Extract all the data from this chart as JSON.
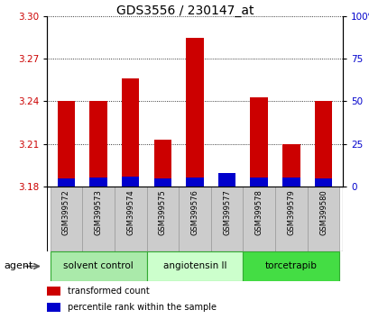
{
  "title": "GDS3556 / 230147_at",
  "samples": [
    "GSM399572",
    "GSM399573",
    "GSM399574",
    "GSM399575",
    "GSM399576",
    "GSM399577",
    "GSM399578",
    "GSM399579",
    "GSM399580"
  ],
  "red_values": [
    3.24,
    3.24,
    3.256,
    3.213,
    3.285,
    3.182,
    3.243,
    3.21,
    3.24
  ],
  "blue_pct": [
    5.0,
    5.5,
    6.0,
    4.5,
    5.5,
    8.0,
    5.5,
    5.5,
    5.0
  ],
  "baseline": 3.18,
  "ylim": [
    3.18,
    3.3
  ],
  "yticks_left": [
    3.18,
    3.21,
    3.24,
    3.27,
    3.3
  ],
  "yticks_right_vals": [
    0,
    25,
    50,
    75,
    100
  ],
  "red_color": "#cc0000",
  "blue_color": "#0000cc",
  "groups": [
    {
      "label": "solvent control",
      "indices": [
        0,
        1,
        2
      ],
      "color": "#aaeaaa"
    },
    {
      "label": "angiotensin II",
      "indices": [
        3,
        4,
        5
      ],
      "color": "#ccffcc"
    },
    {
      "label": "torcetrapib",
      "indices": [
        6,
        7,
        8
      ],
      "color": "#44dd44"
    }
  ],
  "agent_label": "agent",
  "legend_red": "transformed count",
  "legend_blue": "percentile rank within the sample",
  "bar_width": 0.55,
  "bg_color": "#ffffff",
  "tick_label_color_left": "#cc0000",
  "tick_label_color_right": "#0000cc",
  "xlabel_area_color": "#cccccc",
  "title_fontsize": 10
}
